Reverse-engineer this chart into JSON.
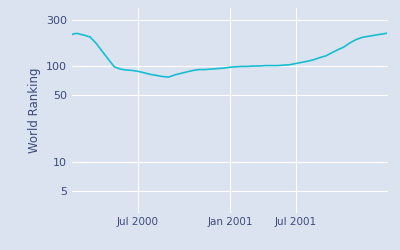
{
  "line_color": "#17becf",
  "background_color": "#dce3f0",
  "plot_bg": "#dce3f0",
  "ylabel": "World Ranking",
  "yticks": [
    5,
    10,
    50,
    100,
    300
  ],
  "ytick_labels": [
    "5",
    "10",
    "50",
    "100",
    "300"
  ],
  "dates_numeric": [
    0,
    7,
    14,
    21,
    28,
    35,
    42,
    56,
    77,
    98,
    112,
    126,
    140,
    154,
    168,
    182,
    196,
    210,
    224,
    238,
    252,
    266,
    280,
    294,
    308,
    322,
    336,
    350,
    364,
    378,
    392,
    406,
    420,
    434,
    448,
    462,
    476,
    490,
    504,
    518,
    532,
    546,
    560,
    574,
    588,
    602,
    616,
    630,
    644,
    658,
    672,
    686,
    700,
    714,
    728
  ],
  "values": [
    210,
    215,
    215,
    210,
    207,
    202,
    198,
    170,
    128,
    97,
    92,
    90,
    89,
    87,
    84,
    81,
    79,
    77,
    76,
    80,
    83,
    86,
    89,
    91,
    91,
    92,
    93,
    94,
    96,
    97,
    98,
    98,
    99,
    99,
    100,
    100,
    100,
    101,
    102,
    105,
    108,
    111,
    115,
    121,
    126,
    136,
    146,
    156,
    172,
    186,
    196,
    201,
    206,
    211,
    216
  ],
  "xlim_start": 0,
  "xlim_end": 728,
  "ylim_min": 3,
  "ylim_max": 400,
  "xtick_positions": [
    152,
    366,
    518,
    732
  ],
  "xtick_labels": [
    "Jul 2000",
    "Jan 2001",
    "Jul 2001",
    ""
  ],
  "label_color": "#3d4a7a",
  "tick_color": "#3d4a7a",
  "line_width": 1.2,
  "grid_color": "#ffffff",
  "grid_linewidth": 0.8
}
